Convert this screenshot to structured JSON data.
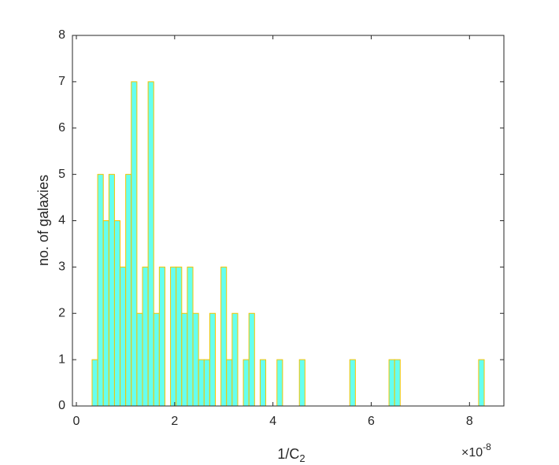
{
  "chart_data": {
    "type": "histogram",
    "xlabel": {
      "text": "1/C",
      "subscript": "2"
    },
    "ylabel": "no. of galaxies",
    "x_multiplier": {
      "base": "×10",
      "exponent": "-8"
    },
    "bins": [
      0.32,
      0.434,
      0.548,
      0.662,
      0.776,
      0.89,
      1.004,
      1.118,
      1.232,
      1.346,
      1.46,
      1.574,
      1.688,
      1.802,
      1.916,
      2.03,
      2.144,
      2.258,
      2.372,
      2.486,
      2.6,
      2.714,
      2.828,
      2.942,
      3.056,
      3.17,
      3.284,
      3.398,
      3.512,
      3.626,
      3.74,
      3.854,
      3.968,
      4.082,
      4.196,
      4.31,
      4.424,
      4.538,
      4.652,
      4.766,
      4.88,
      4.994,
      5.108,
      5.222,
      5.336,
      5.45,
      5.564,
      5.678,
      5.792,
      5.906,
      6.02,
      6.134,
      6.248,
      6.362,
      6.476,
      6.59,
      6.704,
      6.818,
      6.932,
      7.046,
      7.16,
      7.274,
      7.388,
      7.502,
      7.616,
      7.73,
      7.844,
      7.958,
      8.072,
      8.186,
      8.3
    ],
    "values": [
      1,
      5,
      4,
      5,
      4,
      3,
      5,
      7,
      2,
      3,
      7,
      2,
      3,
      0,
      3,
      3,
      2,
      3,
      2,
      1,
      1,
      2,
      0,
      3,
      1,
      2,
      0,
      1,
      2,
      0,
      1,
      0,
      0,
      1,
      0,
      0,
      0,
      1,
      0,
      0,
      0,
      0,
      0,
      0,
      0,
      0,
      1,
      0,
      0,
      0,
      0,
      0,
      0,
      1,
      1,
      0,
      0,
      0,
      0,
      0,
      0,
      0,
      0,
      0,
      0,
      0,
      0,
      0,
      0,
      1
    ],
    "color": "#66fff0",
    "edge_color": "#f5c400",
    "xlim": [
      -0.08,
      8.7
    ],
    "ylim": [
      0,
      8
    ],
    "xticks": [
      0,
      2,
      4,
      6,
      8
    ],
    "yticks": [
      0,
      1,
      2,
      3,
      4,
      5,
      6,
      7,
      8
    ]
  }
}
